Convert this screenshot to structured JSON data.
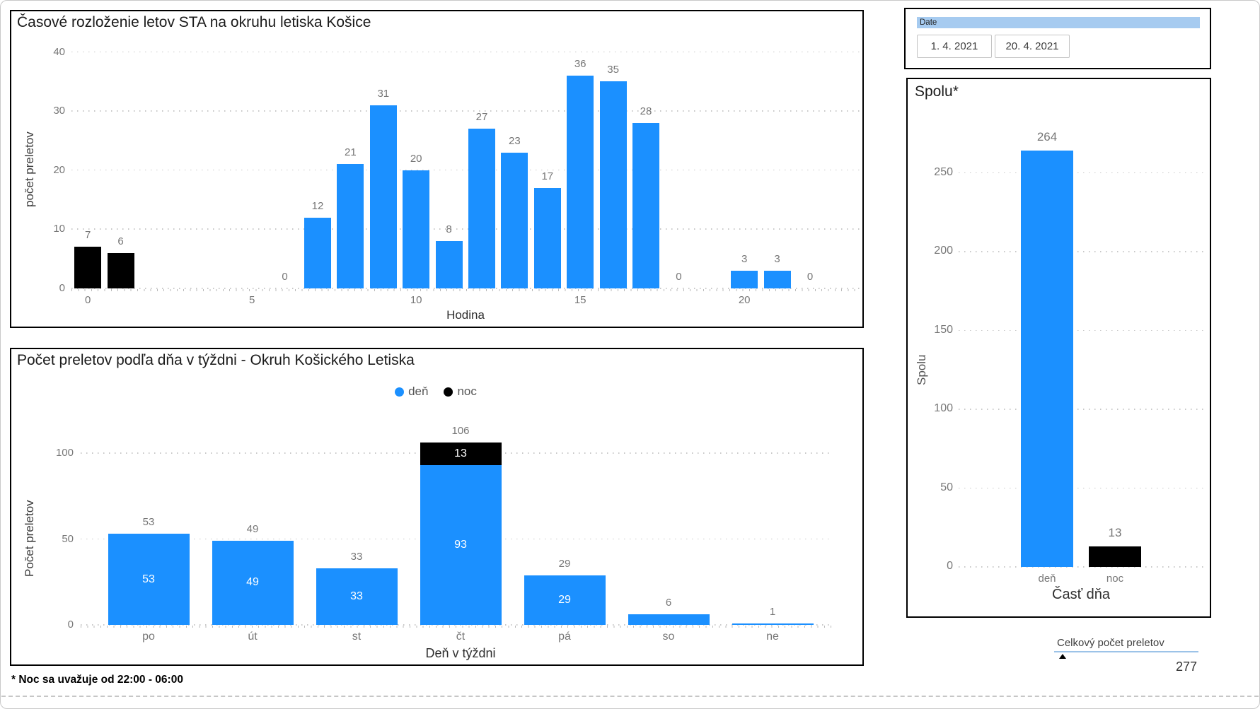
{
  "date_slicer": {
    "header": "Date",
    "start_date": "1. 4. 2021",
    "end_date": "20. 4. 2021"
  },
  "footnote": "* Noc sa uvažuje od 22:00 - 06:00",
  "total_card": {
    "title": "Celkový počet preletov",
    "value": "277"
  },
  "colors": {
    "day": "#1B90FF",
    "night": "#000000",
    "slicer_header_bg": "#A6CBF0",
    "card_underline": "#9CC3E8",
    "grid": "#C8C8C8",
    "value_label": "#767676",
    "axis_tick": "#777777"
  },
  "chart_data": [
    {
      "id": "hourly",
      "type": "bar",
      "title": "Časové rozloženie letov STA na okruhu letiska Košice",
      "xlabel": "Hodina",
      "ylabel": "počet preletov",
      "ylim": [
        0,
        40
      ],
      "yticks": [
        0,
        10,
        20,
        30,
        40
      ],
      "xticks": [
        0,
        5,
        10,
        15,
        20
      ],
      "points": [
        {
          "hour": 0,
          "value": 7,
          "series": "noc"
        },
        {
          "hour": 1,
          "value": 6,
          "series": "noc"
        },
        {
          "hour": 6,
          "value": 0,
          "series": "deň"
        },
        {
          "hour": 7,
          "value": 12,
          "series": "deň"
        },
        {
          "hour": 8,
          "value": 21,
          "series": "deň"
        },
        {
          "hour": 9,
          "value": 31,
          "series": "deň"
        },
        {
          "hour": 10,
          "value": 20,
          "series": "deň"
        },
        {
          "hour": 11,
          "value": 8,
          "series": "deň"
        },
        {
          "hour": 12,
          "value": 27,
          "series": "deň"
        },
        {
          "hour": 13,
          "value": 23,
          "series": "deň"
        },
        {
          "hour": 14,
          "value": 17,
          "series": "deň"
        },
        {
          "hour": 15,
          "value": 36,
          "series": "deň"
        },
        {
          "hour": 16,
          "value": 35,
          "series": "deň"
        },
        {
          "hour": 17,
          "value": 28,
          "series": "deň"
        },
        {
          "hour": 18,
          "value": 0,
          "series": "deň"
        },
        {
          "hour": 20,
          "value": 3,
          "series": "deň"
        },
        {
          "hour": 21,
          "value": 3,
          "series": "deň"
        },
        {
          "hour": 22,
          "value": 0,
          "series": "deň"
        }
      ]
    },
    {
      "id": "weekday",
      "type": "stacked-bar",
      "title": "Počet preletov podľa dňa v týždni - Okruh Košického Letiska",
      "xlabel": "Deň v týždni",
      "ylabel": "Počet preletov",
      "ylim": [
        0,
        115
      ],
      "yticks": [
        0,
        50,
        100
      ],
      "legend": [
        {
          "label": "deň",
          "color": "day"
        },
        {
          "label": "noc",
          "color": "night"
        }
      ],
      "categories": [
        "po",
        "út",
        "st",
        "čt",
        "pá",
        "so",
        "ne"
      ],
      "series": [
        {
          "name": "deň",
          "color": "day",
          "values": [
            53,
            49,
            33,
            93,
            29,
            6,
            1
          ]
        },
        {
          "name": "noc",
          "color": "night",
          "values": [
            0,
            0,
            0,
            13,
            0,
            0,
            0
          ]
        }
      ],
      "totals": [
        53,
        49,
        33,
        106,
        29,
        6,
        1
      ]
    },
    {
      "id": "spolu",
      "type": "bar",
      "title": "Spolu*",
      "xlabel": "Časť dňa",
      "ylabel": "Spolu",
      "ylim": [
        0,
        280
      ],
      "yticks": [
        0,
        50,
        100,
        150,
        200,
        250
      ],
      "categories": [
        "deň",
        "noc"
      ],
      "values": [
        264,
        13
      ],
      "bar_colors": [
        "day",
        "night"
      ]
    }
  ]
}
